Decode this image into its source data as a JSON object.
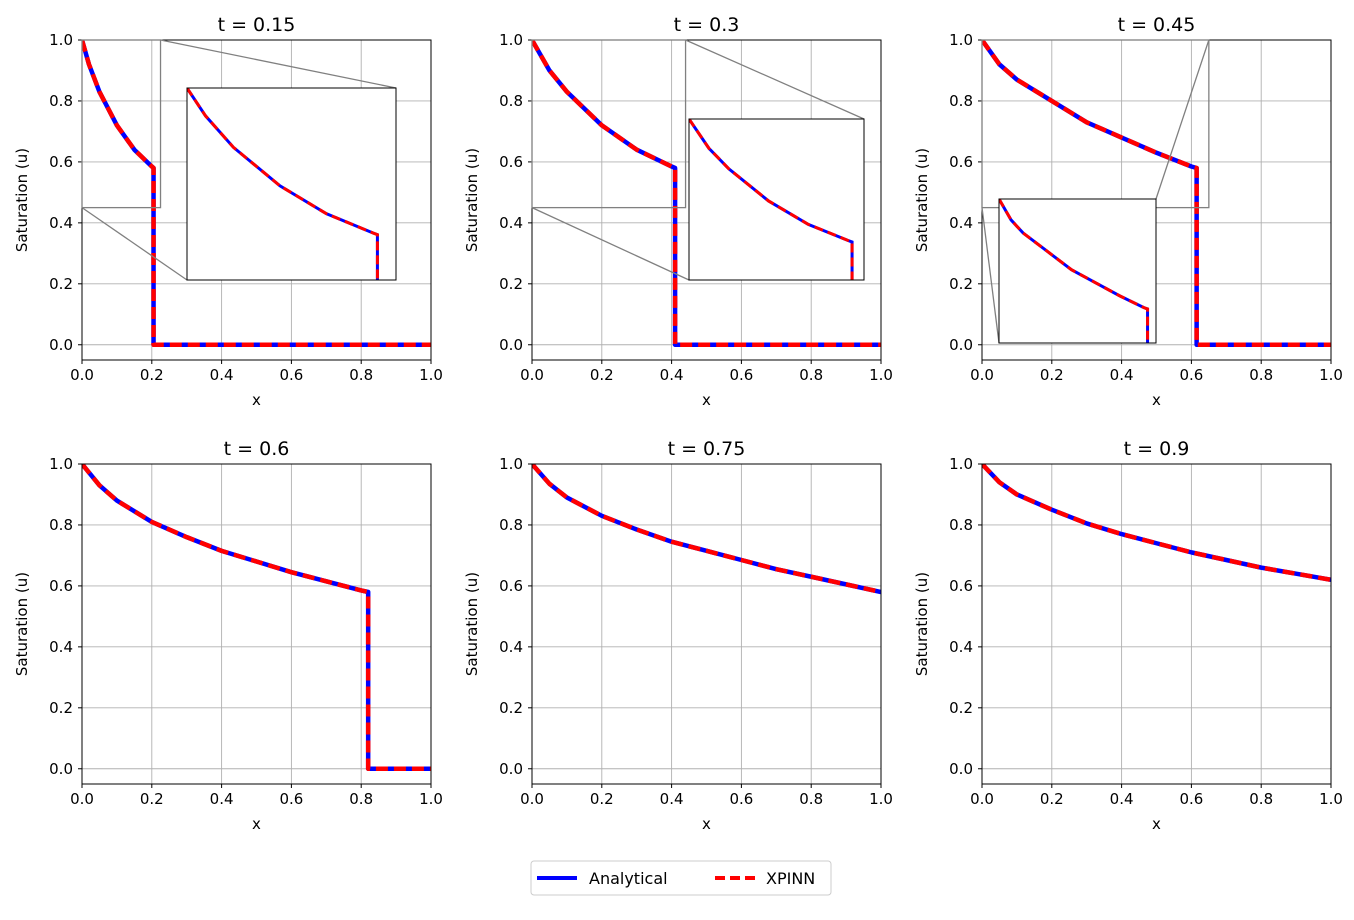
{
  "chart_data": [
    {
      "type": "line",
      "title": "t = 0.15",
      "xlabel": "x",
      "ylabel": "Saturation (u)",
      "xlim": [
        0.0,
        1.0
      ],
      "ylim": [
        -0.05,
        1.0
      ],
      "xticks": [
        "0.0",
        "0.2",
        "0.4",
        "0.6",
        "0.8",
        "1.0"
      ],
      "yticks": [
        "0.0",
        "0.2",
        "0.4",
        "0.6",
        "0.8",
        "1.0"
      ],
      "grid": true,
      "shock_position": 0.205,
      "shock_value": 0.58,
      "series": [
        {
          "name": "Analytical",
          "x": [
            0.0,
            0.02,
            0.05,
            0.1,
            0.15,
            0.2,
            0.205,
            0.205,
            1.0
          ],
          "y": [
            1.0,
            0.92,
            0.83,
            0.72,
            0.64,
            0.585,
            0.58,
            0.0,
            0.0
          ]
        },
        {
          "name": "XPINN",
          "x": [
            0.0,
            0.02,
            0.05,
            0.1,
            0.15,
            0.2,
            0.205,
            0.205,
            1.0
          ],
          "y": [
            1.0,
            0.92,
            0.83,
            0.72,
            0.64,
            0.585,
            0.58,
            0.0,
            0.0
          ]
        }
      ],
      "inset": {
        "xlim": [
          0.0,
          0.225
        ],
        "ylim": [
          0.45,
          1.0
        ],
        "location": "upper-right"
      }
    },
    {
      "type": "line",
      "title": "t = 0.3",
      "xlabel": "x",
      "ylabel": "Saturation (u)",
      "xlim": [
        0.0,
        1.0
      ],
      "ylim": [
        -0.05,
        1.0
      ],
      "xticks": [
        "0.0",
        "0.2",
        "0.4",
        "0.6",
        "0.8",
        "1.0"
      ],
      "yticks": [
        "0.0",
        "0.2",
        "0.4",
        "0.6",
        "0.8",
        "1.0"
      ],
      "grid": true,
      "shock_position": 0.41,
      "shock_value": 0.58,
      "series": [
        {
          "name": "Analytical",
          "x": [
            0.0,
            0.05,
            0.1,
            0.2,
            0.3,
            0.4,
            0.41,
            0.41,
            1.0
          ],
          "y": [
            1.0,
            0.9,
            0.83,
            0.72,
            0.64,
            0.585,
            0.58,
            0.0,
            0.0
          ]
        },
        {
          "name": "XPINN",
          "x": [
            0.0,
            0.05,
            0.1,
            0.2,
            0.3,
            0.4,
            0.41,
            0.41,
            1.0
          ],
          "y": [
            1.0,
            0.9,
            0.83,
            0.72,
            0.64,
            0.585,
            0.58,
            0.0,
            0.0
          ]
        }
      ],
      "inset": {
        "xlim": [
          0.0,
          0.44
        ],
        "ylim": [
          0.45,
          1.0
        ],
        "location": "right"
      }
    },
    {
      "type": "line",
      "title": "t = 0.45",
      "xlabel": "x",
      "ylabel": "Saturation (u)",
      "xlim": [
        0.0,
        1.0
      ],
      "ylim": [
        -0.05,
        1.0
      ],
      "xticks": [
        "0.0",
        "0.2",
        "0.4",
        "0.6",
        "0.8",
        "1.0"
      ],
      "yticks": [
        "0.0",
        "0.2",
        "0.4",
        "0.6",
        "0.8",
        "1.0"
      ],
      "grid": true,
      "shock_position": 0.615,
      "shock_value": 0.58,
      "series": [
        {
          "name": "Analytical",
          "x": [
            0.0,
            0.05,
            0.1,
            0.2,
            0.3,
            0.4,
            0.5,
            0.6,
            0.615,
            0.615,
            1.0
          ],
          "y": [
            1.0,
            0.92,
            0.87,
            0.8,
            0.73,
            0.68,
            0.63,
            0.585,
            0.58,
            0.0,
            0.0
          ]
        },
        {
          "name": "XPINN",
          "x": [
            0.0,
            0.05,
            0.1,
            0.2,
            0.3,
            0.4,
            0.5,
            0.6,
            0.615,
            0.615,
            1.0
          ],
          "y": [
            1.0,
            0.92,
            0.87,
            0.8,
            0.73,
            0.68,
            0.63,
            0.585,
            0.58,
            0.0,
            0.0
          ]
        }
      ],
      "inset": {
        "xlim": [
          0.0,
          0.65
        ],
        "ylim": [
          0.45,
          1.0
        ],
        "location": "lower-left"
      }
    },
    {
      "type": "line",
      "title": "t = 0.6",
      "xlabel": "x",
      "ylabel": "Saturation (u)",
      "xlim": [
        0.0,
        1.0
      ],
      "ylim": [
        -0.05,
        1.0
      ],
      "xticks": [
        "0.0",
        "0.2",
        "0.4",
        "0.6",
        "0.8",
        "1.0"
      ],
      "yticks": [
        "0.0",
        "0.2",
        "0.4",
        "0.6",
        "0.8",
        "1.0"
      ],
      "grid": true,
      "shock_position": 0.82,
      "shock_value": 0.58,
      "series": [
        {
          "name": "Analytical",
          "x": [
            0.0,
            0.05,
            0.1,
            0.2,
            0.3,
            0.4,
            0.5,
            0.6,
            0.7,
            0.8,
            0.82,
            0.82,
            1.0
          ],
          "y": [
            1.0,
            0.93,
            0.88,
            0.81,
            0.76,
            0.715,
            0.68,
            0.645,
            0.615,
            0.585,
            0.58,
            0.0,
            0.0
          ]
        },
        {
          "name": "XPINN",
          "x": [
            0.0,
            0.05,
            0.1,
            0.2,
            0.3,
            0.4,
            0.5,
            0.6,
            0.7,
            0.8,
            0.82,
            0.82,
            1.0
          ],
          "y": [
            1.0,
            0.93,
            0.88,
            0.81,
            0.76,
            0.715,
            0.68,
            0.645,
            0.615,
            0.585,
            0.58,
            0.0,
            0.0
          ]
        }
      ]
    },
    {
      "type": "line",
      "title": "t = 0.75",
      "xlabel": "x",
      "ylabel": "Saturation (u)",
      "xlim": [
        0.0,
        1.0
      ],
      "ylim": [
        -0.05,
        1.0
      ],
      "xticks": [
        "0.0",
        "0.2",
        "0.4",
        "0.6",
        "0.8",
        "1.0"
      ],
      "yticks": [
        "0.0",
        "0.2",
        "0.4",
        "0.6",
        "0.8",
        "1.0"
      ],
      "grid": true,
      "series": [
        {
          "name": "Analytical",
          "x": [
            0.0,
            0.05,
            0.1,
            0.2,
            0.3,
            0.4,
            0.5,
            0.6,
            0.7,
            0.8,
            0.9,
            1.0
          ],
          "y": [
            1.0,
            0.935,
            0.89,
            0.83,
            0.785,
            0.745,
            0.715,
            0.685,
            0.655,
            0.63,
            0.605,
            0.58
          ]
        },
        {
          "name": "XPINN",
          "x": [
            0.0,
            0.05,
            0.1,
            0.2,
            0.3,
            0.4,
            0.5,
            0.6,
            0.7,
            0.8,
            0.9,
            1.0
          ],
          "y": [
            1.0,
            0.935,
            0.89,
            0.83,
            0.785,
            0.745,
            0.715,
            0.685,
            0.655,
            0.63,
            0.605,
            0.58
          ]
        }
      ]
    },
    {
      "type": "line",
      "title": "t = 0.9",
      "xlabel": "x",
      "ylabel": "Saturation (u)",
      "xlim": [
        0.0,
        1.0
      ],
      "ylim": [
        -0.05,
        1.0
      ],
      "xticks": [
        "0.0",
        "0.2",
        "0.4",
        "0.6",
        "0.8",
        "1.0"
      ],
      "yticks": [
        "0.0",
        "0.2",
        "0.4",
        "0.6",
        "0.8",
        "1.0"
      ],
      "grid": true,
      "series": [
        {
          "name": "Analytical",
          "x": [
            0.0,
            0.05,
            0.1,
            0.2,
            0.3,
            0.4,
            0.5,
            0.6,
            0.7,
            0.8,
            0.9,
            1.0
          ],
          "y": [
            1.0,
            0.94,
            0.9,
            0.85,
            0.805,
            0.77,
            0.74,
            0.71,
            0.685,
            0.66,
            0.64,
            0.62
          ]
        },
        {
          "name": "XPINN",
          "x": [
            0.0,
            0.05,
            0.1,
            0.2,
            0.3,
            0.4,
            0.5,
            0.6,
            0.7,
            0.8,
            0.9,
            1.0
          ],
          "y": [
            1.0,
            0.94,
            0.9,
            0.85,
            0.805,
            0.77,
            0.74,
            0.71,
            0.685,
            0.66,
            0.64,
            0.62
          ]
        }
      ]
    }
  ],
  "legend": {
    "location": "bottom-center",
    "entries": [
      {
        "label": "Analytical",
        "color": "#0000ff",
        "style": "solid"
      },
      {
        "label": "XPINN",
        "color": "#ff0000",
        "style": "dashed"
      }
    ]
  },
  "colors": {
    "analytical": "#0000ff",
    "xpinn": "#ff0000",
    "grid": "#b0b0b0",
    "inset_connector": "#808080"
  }
}
